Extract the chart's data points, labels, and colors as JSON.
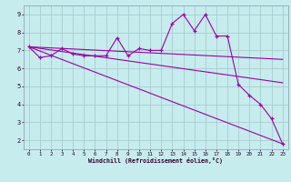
{
  "xlabel": "Windchill (Refroidissement éolien,°C)",
  "bg_color": "#c6ecee",
  "line_color": "#9900aa",
  "grid_color": "#aacccc",
  "xlim": [
    -0.5,
    23.5
  ],
  "ylim": [
    1.5,
    9.5
  ],
  "yticks": [
    2,
    3,
    4,
    5,
    6,
    7,
    8,
    9
  ],
  "xticks": [
    0,
    1,
    2,
    3,
    4,
    5,
    6,
    7,
    8,
    9,
    10,
    11,
    12,
    13,
    14,
    15,
    16,
    17,
    18,
    19,
    20,
    21,
    22,
    23
  ],
  "series1_x": [
    0,
    1,
    2,
    3,
    4,
    5,
    6,
    7,
    8,
    9,
    10,
    11,
    12,
    13,
    14,
    15,
    16,
    17,
    18,
    19,
    20,
    21,
    22,
    23
  ],
  "series1_y": [
    7.2,
    6.6,
    6.7,
    7.1,
    6.8,
    6.7,
    6.7,
    6.7,
    7.7,
    6.7,
    7.1,
    7.0,
    7.0,
    8.5,
    9.0,
    8.1,
    9.0,
    7.8,
    7.8,
    5.1,
    4.5,
    4.0,
    3.2,
    1.8
  ],
  "line1_x": [
    0,
    23
  ],
  "line1_y": [
    7.2,
    6.5
  ],
  "line2_x": [
    0,
    23
  ],
  "line2_y": [
    7.2,
    5.2
  ],
  "line3_x": [
    0,
    23
  ],
  "line3_y": [
    7.2,
    1.8
  ]
}
